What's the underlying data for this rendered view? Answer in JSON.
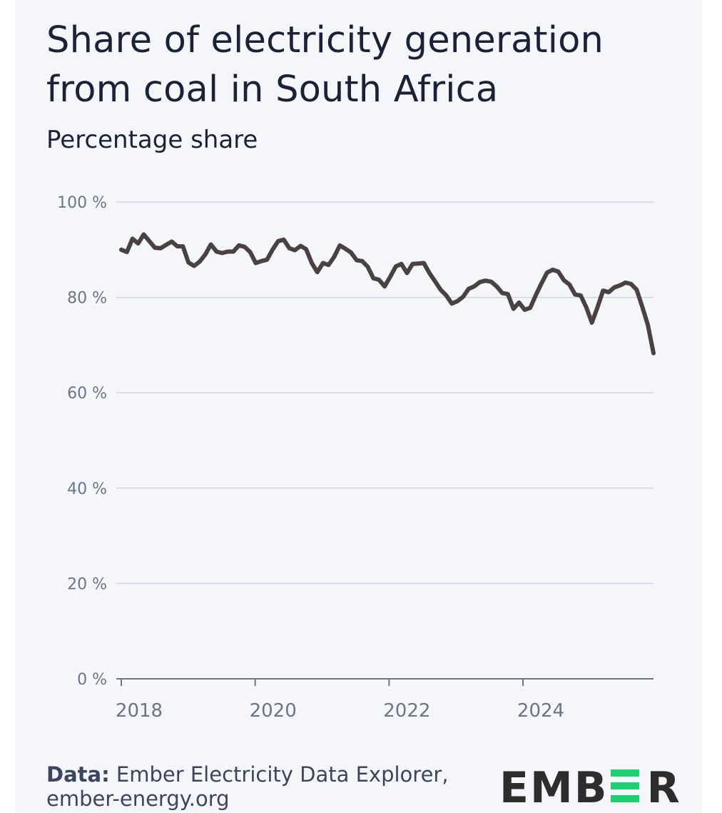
{
  "title": "Share of electricity generation from coal in South Africa",
  "subtitle": "Percentage share",
  "source": {
    "label": "Data:",
    "text": "Ember Electricity Data Explorer,",
    "url": "ember-energy.org"
  },
  "logo": {
    "text_left": "EMB",
    "text_right": "R",
    "full_text": "EMBER",
    "accent_color": "#1fd072"
  },
  "colors": {
    "line": "#4a4242",
    "grid": "#cfd5e3",
    "axis": "#6b7488",
    "background": "#f4f6fa"
  },
  "chart_data": {
    "type": "line",
    "title": "Share of electricity generation from coal in South Africa",
    "subtitle": "Percentage share",
    "xlabel": "",
    "ylabel": "",
    "x_start": "2018-01",
    "x_frequency": "monthly",
    "xlim": [
      2018,
      2025.95
    ],
    "ylim": [
      0,
      100
    ],
    "y_ticks": [
      0,
      20,
      40,
      60,
      80,
      100
    ],
    "y_tick_labels": [
      "0 %",
      "20 %",
      "40 %",
      "60 %",
      "80 %",
      "100 %"
    ],
    "x_ticks": [
      2018,
      2020,
      2022,
      2024
    ],
    "x_tick_labels": [
      "2018",
      "2020",
      "2022",
      "2024"
    ],
    "grid": true,
    "legend": "none",
    "series": [
      {
        "values": [
          90.0,
          89.5,
          92.3,
          91.3,
          93.2,
          91.8,
          90.4,
          90.3,
          91.0,
          91.7,
          90.7,
          90.7,
          87.3,
          86.6,
          87.5,
          89.0,
          91.1,
          89.6,
          89.3,
          89.6,
          89.6,
          90.9,
          90.6,
          89.5,
          87.2,
          87.6,
          87.9,
          90.0,
          91.8,
          92.1,
          90.3,
          89.9,
          90.8,
          90.1,
          87.2,
          85.3,
          87.2,
          86.8,
          88.5,
          90.9,
          90.2,
          89.4,
          87.8,
          87.6,
          86.4,
          84.0,
          83.7,
          82.3,
          84.3,
          86.5,
          87.0,
          85.1,
          87.0,
          87.1,
          87.2,
          85.1,
          83.4,
          81.6,
          80.4,
          78.7,
          79.2,
          80.1,
          81.8,
          82.3,
          83.2,
          83.5,
          83.3,
          82.3,
          80.9,
          80.7,
          77.6,
          78.9,
          77.4,
          77.8,
          80.5,
          82.9,
          85.2,
          85.8,
          85.4,
          83.6,
          82.7,
          80.6,
          80.4,
          77.9,
          74.7,
          77.9,
          81.4,
          81.1,
          82.1,
          82.5,
          83.1,
          82.8,
          81.6,
          78.0,
          74.2,
          68.3
        ]
      }
    ]
  }
}
